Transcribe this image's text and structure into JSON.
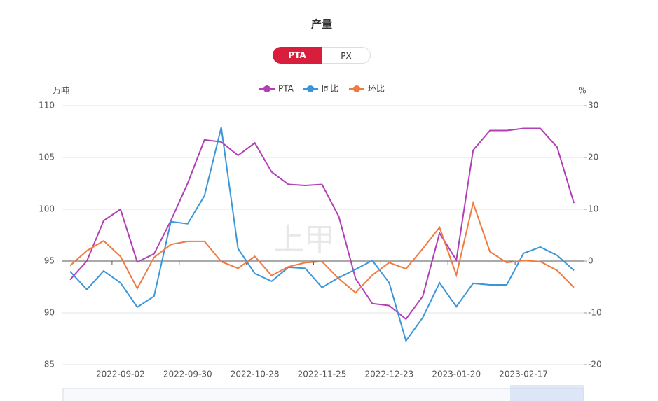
{
  "tabs": [
    "PTA",
    "PX"
  ],
  "chart_data": {
    "type": "line",
    "title": "产量",
    "watermark": "上甲",
    "y_label": "万吨",
    "y2_label": "%",
    "categories": [
      null,
      null,
      null,
      "2022-09-02",
      null,
      null,
      null,
      "2022-09-30",
      null,
      null,
      null,
      "2022-10-28",
      null,
      null,
      null,
      "2022-11-25",
      null,
      null,
      null,
      "2022-12-23",
      null,
      null,
      null,
      "2023-01-20",
      null,
      null,
      null,
      "2023-02-17",
      null,
      null,
      null
    ],
    "series": [
      {
        "name": "PTA",
        "color": "#b23fb5",
        "values": [
          93.2,
          95.0,
          98.9,
          100.0,
          94.9,
          95.7,
          98.9,
          102.5,
          106.7,
          106.5,
          105.2,
          106.4,
          103.6,
          102.4,
          102.3,
          102.4,
          99.3,
          93.3,
          90.9,
          90.7,
          89.4,
          91.6,
          97.7,
          95.1,
          105.7,
          107.6,
          107.6,
          107.8,
          107.8,
          106.0,
          100.6
        ]
      },
      {
        "name": "同比",
        "color": "#3b96d8",
        "axis": "y2",
        "values": [
          -2.0,
          -5.5,
          -1.9,
          -4.2,
          -8.9,
          -6.8,
          7.6,
          7.2,
          12.6,
          25.8,
          2.4,
          -2.4,
          -3.9,
          -1.2,
          -1.4,
          -5.1,
          -3.2,
          -1.6,
          0.1,
          -4.2,
          -15.4,
          -10.9,
          -4.2,
          -8.8,
          -4.3,
          -4.6,
          -4.6,
          1.5,
          2.7,
          1.1,
          -1.8
        ]
      },
      {
        "name": "环比",
        "color": "#f07b42",
        "axis": "y2",
        "values": [
          -0.9,
          2.0,
          3.9,
          0.9,
          -5.3,
          0.7,
          3.2,
          3.8,
          3.8,
          -0.1,
          -1.4,
          0.9,
          -2.8,
          -1.1,
          -0.3,
          -0.1,
          -3.4,
          -6.1,
          -2.7,
          -0.3,
          -1.5,
          2.4,
          6.5,
          -2.7,
          11.2,
          1.8,
          -0.3,
          0.1,
          -0.1,
          -1.8,
          -5.1
        ]
      }
    ],
    "ylim": [
      85,
      110
    ],
    "yticks": [
      85,
      90,
      95,
      100,
      105,
      110
    ],
    "y2lim": [
      -20,
      30
    ],
    "y2ticks": [
      -20,
      -10,
      0,
      10,
      20,
      30
    ],
    "grid": true
  }
}
